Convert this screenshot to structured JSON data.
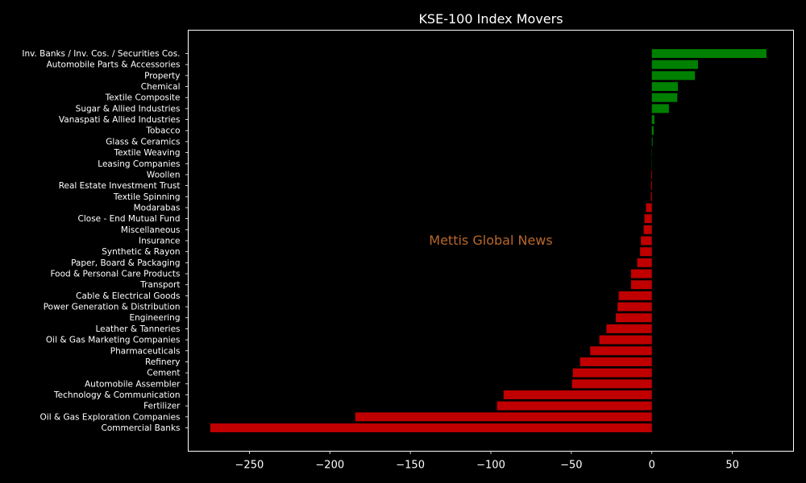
{
  "chart_data": {
    "type": "bar",
    "orientation": "horizontal",
    "title": "KSE-100 Index Movers",
    "xlabel": "",
    "ylabel": "",
    "watermark": "Mettis Global News",
    "xlim": [
      -288,
      88
    ],
    "xticks": [
      -250,
      -200,
      -150,
      -100,
      -50,
      0,
      50
    ],
    "xtick_labels": [
      "−250",
      "−200",
      "−150",
      "−100",
      "−50",
      "0",
      "50"
    ],
    "grid": false,
    "colors": {
      "positive": "#008000",
      "negative": "#c00000",
      "background": "#000000",
      "foreground": "#ffffff",
      "watermark": "#b8672a"
    },
    "categories": [
      "Inv. Banks / Inv. Cos. / Securities Cos.",
      "Automobile Parts & Accessories",
      "Property",
      "Chemical",
      "Textile Composite",
      "Sugar & Allied Industries",
      "Vanaspati & Allied Industries",
      "Tobacco",
      "Glass & Ceramics",
      "Textile Weaving",
      "Leasing Companies",
      "Woollen",
      "Real Estate Investment Trust",
      "Textile Spinning",
      "Modarabas",
      "Close - End Mutual Fund",
      "Miscellaneous",
      "Insurance",
      "Synthetic & Rayon",
      "Paper, Board & Packaging",
      "Food & Personal Care Products",
      "Transport",
      "Cable & Electrical Goods",
      "Power Generation & Distribution",
      "Engineering",
      "Leather & Tanneries",
      "Oil & Gas Marketing Companies",
      "Pharmaceuticals",
      "Refinery",
      "Cement",
      "Automobile Assembler",
      "Technology & Communication",
      "Fertilizer",
      "Oil & Gas Exploration Companies",
      "Commercial Banks"
    ],
    "values": [
      71.2,
      28.7,
      26.8,
      16.2,
      15.8,
      10.6,
      1.6,
      1.1,
      0.5,
      0.05,
      0.0,
      -0.4,
      -0.5,
      -0.6,
      -3.6,
      -4.6,
      -5.1,
      -6.8,
      -7.3,
      -9.1,
      -12.9,
      -12.9,
      -20.6,
      -21.3,
      -22.4,
      -28.2,
      -32.6,
      -38.3,
      -44.6,
      -49.1,
      -49.6,
      -92.1,
      -96.2,
      -184.2,
      -274.3
    ]
  }
}
